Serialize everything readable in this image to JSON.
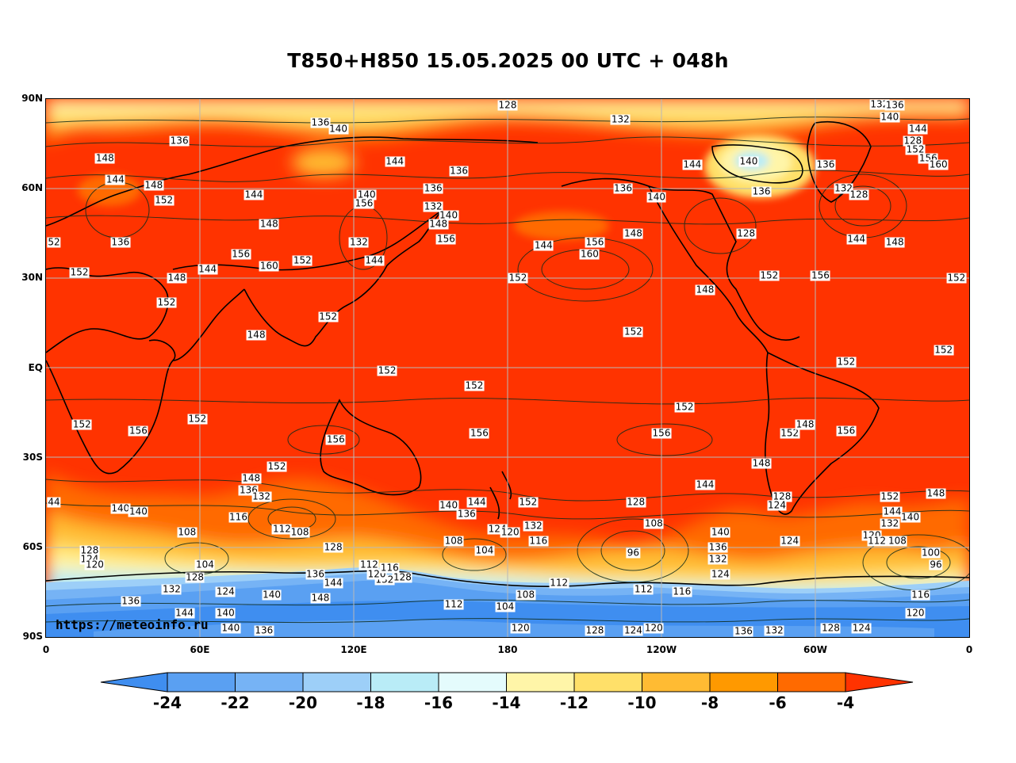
{
  "title": "T850+H850 15.05.2025 00 UTC + 048h",
  "credit": "https://meteoinfo.ru",
  "map": {
    "projection": "equirectangular",
    "lon_range": [
      0,
      360
    ],
    "lat_range": [
      -90,
      90
    ],
    "background_color": "#ff3300",
    "lat_ticks": [
      {
        "label": "90N",
        "lat": 90
      },
      {
        "label": "60N",
        "lat": 60
      },
      {
        "label": "30N",
        "lat": 30
      },
      {
        "label": "EQ",
        "lat": 0
      },
      {
        "label": "30S",
        "lat": -30
      },
      {
        "label": "60S",
        "lat": -60
      },
      {
        "label": "90S",
        "lat": -90
      }
    ],
    "lon_ticks": [
      {
        "label": "0",
        "lon": 0
      },
      {
        "label": "60E",
        "lon": 60
      },
      {
        "label": "120E",
        "lon": 120
      },
      {
        "label": "180",
        "lon": 180
      },
      {
        "label": "120W",
        "lon": 240
      },
      {
        "label": "60W",
        "lon": 300
      },
      {
        "label": "0",
        "lon": 360
      }
    ],
    "gridlines": true
  },
  "colorbar": {
    "levels": [
      "-24",
      "-22",
      "-20",
      "-18",
      "-16",
      "-14",
      "-12",
      "-10",
      "-8",
      "-6",
      "-4"
    ],
    "colors": [
      "#3f8ef0",
      "#5aa0f2",
      "#76b3f5",
      "#9dcff8",
      "#b9ecf7",
      "#e4fbfc",
      "#fff5a8",
      "#ffe069",
      "#ffbb33",
      "#ff9900",
      "#ff6a00",
      "#ff3300"
    ],
    "extend": "both"
  },
  "contour_labels": [
    {
      "t": "128",
      "lon": 180,
      "lat": 88
    },
    {
      "t": "132",
      "lon": 224,
      "lat": 83
    },
    {
      "t": "136",
      "lon": 107,
      "lat": 82
    },
    {
      "t": "140",
      "lon": 114,
      "lat": 80
    },
    {
      "t": "136",
      "lon": 52,
      "lat": 76
    },
    {
      "t": "148",
      "lon": 23,
      "lat": 70
    },
    {
      "t": "144",
      "lon": 27,
      "lat": 63
    },
    {
      "t": "148",
      "lon": 42,
      "lat": 61
    },
    {
      "t": "152",
      "lon": 46,
      "lat": 56
    },
    {
      "t": "144",
      "lon": 81,
      "lat": 58
    },
    {
      "t": "148",
      "lon": 87,
      "lat": 48
    },
    {
      "t": "136",
      "lon": 29,
      "lat": 42
    },
    {
      "t": "52",
      "lon": 1,
      "lat": 42
    },
    {
      "t": "152",
      "lon": 13,
      "lat": 32
    },
    {
      "t": "156",
      "lon": 76,
      "lat": 38
    },
    {
      "t": "160",
      "lon": 87,
      "lat": 34
    },
    {
      "t": "152",
      "lon": 100,
      "lat": 36
    },
    {
      "t": "148",
      "lon": 51,
      "lat": 30
    },
    {
      "t": "144",
      "lon": 63,
      "lat": 33
    },
    {
      "t": "152",
      "lon": 47,
      "lat": 22
    },
    {
      "t": "152",
      "lon": 110,
      "lat": 17
    },
    {
      "t": "148",
      "lon": 82,
      "lat": 11
    },
    {
      "t": "144",
      "lon": 136,
      "lat": 69
    },
    {
      "t": "136",
      "lon": 161,
      "lat": 66
    },
    {
      "t": "136",
      "lon": 151,
      "lat": 60
    },
    {
      "t": "132",
      "lon": 151,
      "lat": 54
    },
    {
      "t": "140",
      "lon": 125,
      "lat": 58
    },
    {
      "t": "156",
      "lon": 124,
      "lat": 55
    },
    {
      "t": "140",
      "lon": 157,
      "lat": 51
    },
    {
      "t": "148",
      "lon": 153,
      "lat": 48
    },
    {
      "t": "156",
      "lon": 156,
      "lat": 43
    },
    {
      "t": "132",
      "lon": 122,
      "lat": 42
    },
    {
      "t": "144",
      "lon": 128,
      "lat": 36
    },
    {
      "t": "144",
      "lon": 194,
      "lat": 41
    },
    {
      "t": "156",
      "lon": 214,
      "lat": 42
    },
    {
      "t": "160",
      "lon": 212,
      "lat": 38
    },
    {
      "t": "152",
      "lon": 184,
      "lat": 30
    },
    {
      "t": "136",
      "lon": 225,
      "lat": 60
    },
    {
      "t": "140",
      "lon": 238,
      "lat": 57
    },
    {
      "t": "148",
      "lon": 229,
      "lat": 45
    },
    {
      "t": "144",
      "lon": 252,
      "lat": 68
    },
    {
      "t": "140",
      "lon": 274,
      "lat": 69
    },
    {
      "t": "136",
      "lon": 279,
      "lat": 59
    },
    {
      "t": "128",
      "lon": 273,
      "lat": 45
    },
    {
      "t": "152",
      "lon": 282,
      "lat": 31
    },
    {
      "t": "156",
      "lon": 302,
      "lat": 31
    },
    {
      "t": "148",
      "lon": 257,
      "lat": 26
    },
    {
      "t": "152",
      "lon": 229,
      "lat": 12
    },
    {
      "t": "132",
      "lon": 325,
      "lat": 90
    },
    {
      "t": "136",
      "lon": 331,
      "lat": 88
    },
    {
      "t": "140",
      "lon": 329,
      "lat": 84
    },
    {
      "t": "144",
      "lon": 340,
      "lat": 80
    },
    {
      "t": "128",
      "lon": 338,
      "lat": 76
    },
    {
      "t": "152",
      "lon": 339,
      "lat": 73
    },
    {
      "t": "156",
      "lon": 344,
      "lat": 70
    },
    {
      "t": "160",
      "lon": 348,
      "lat": 68
    },
    {
      "t": "136",
      "lon": 304,
      "lat": 68
    },
    {
      "t": "132",
      "lon": 311,
      "lat": 60
    },
    {
      "t": "128",
      "lon": 317,
      "lat": 58
    },
    {
      "t": "144",
      "lon": 316,
      "lat": 43
    },
    {
      "t": "148",
      "lon": 331,
      "lat": 42
    },
    {
      "t": "152",
      "lon": 355,
      "lat": 30
    },
    {
      "t": "152",
      "lon": 350,
      "lat": 6
    },
    {
      "t": "152",
      "lon": 312,
      "lat": 2
    },
    {
      "t": "152",
      "lon": 133,
      "lat": -1
    },
    {
      "t": "152",
      "lon": 167,
      "lat": -6
    },
    {
      "t": "152",
      "lon": 14,
      "lat": -19
    },
    {
      "t": "152",
      "lon": 59,
      "lat": -17
    },
    {
      "t": "156",
      "lon": 36,
      "lat": -21
    },
    {
      "t": "156",
      "lon": 113,
      "lat": -24
    },
    {
      "t": "156",
      "lon": 169,
      "lat": -22
    },
    {
      "t": "152",
      "lon": 249,
      "lat": -13
    },
    {
      "t": "156",
      "lon": 240,
      "lat": -22
    },
    {
      "t": "152",
      "lon": 290,
      "lat": -22
    },
    {
      "t": "148",
      "lon": 296,
      "lat": -19
    },
    {
      "t": "156",
      "lon": 312,
      "lat": -21
    },
    {
      "t": "152",
      "lon": 90,
      "lat": -33
    },
    {
      "t": "148",
      "lon": 80,
      "lat": -37
    },
    {
      "t": "136",
      "lon": 79,
      "lat": -41
    },
    {
      "t": "132",
      "lon": 84,
      "lat": -43
    },
    {
      "t": "44",
      "lon": 1,
      "lat": -45
    },
    {
      "t": "140",
      "lon": 29,
      "lat": -47
    },
    {
      "t": "140",
      "lon": 36,
      "lat": -48
    },
    {
      "t": "116",
      "lon": 75,
      "lat": -50
    },
    {
      "t": "112",
      "lon": 92,
      "lat": -54
    },
    {
      "t": "108",
      "lon": 99,
      "lat": -55
    },
    {
      "t": "108",
      "lon": 55,
      "lat": -55
    },
    {
      "t": "128",
      "lon": 17,
      "lat": -61
    },
    {
      "t": "124",
      "lon": 17,
      "lat": -64
    },
    {
      "t": "120",
      "lon": 19,
      "lat": -66
    },
    {
      "t": "104",
      "lon": 62,
      "lat": -66
    },
    {
      "t": "128",
      "lon": 58,
      "lat": -70
    },
    {
      "t": "128",
      "lon": 112,
      "lat": -60
    },
    {
      "t": "140",
      "lon": 157,
      "lat": -46
    },
    {
      "t": "144",
      "lon": 168,
      "lat": -45
    },
    {
      "t": "136",
      "lon": 164,
      "lat": -49
    },
    {
      "t": "152",
      "lon": 188,
      "lat": -45
    },
    {
      "t": "124",
      "lon": 176,
      "lat": -54
    },
    {
      "t": "132",
      "lon": 190,
      "lat": -53
    },
    {
      "t": "120",
      "lon": 181,
      "lat": -55
    },
    {
      "t": "108",
      "lon": 159,
      "lat": -58
    },
    {
      "t": "104",
      "lon": 171,
      "lat": -61
    },
    {
      "t": "116",
      "lon": 192,
      "lat": -58
    },
    {
      "t": "128",
      "lon": 230,
      "lat": -45
    },
    {
      "t": "108",
      "lon": 237,
      "lat": -52
    },
    {
      "t": "96",
      "lon": 229,
      "lat": -62
    },
    {
      "t": "140",
      "lon": 263,
      "lat": -55
    },
    {
      "t": "136",
      "lon": 262,
      "lat": -60
    },
    {
      "t": "132",
      "lon": 262,
      "lat": -64
    },
    {
      "t": "124",
      "lon": 263,
      "lat": -69
    },
    {
      "t": "144",
      "lon": 257,
      "lat": -39
    },
    {
      "t": "148",
      "lon": 279,
      "lat": -32
    },
    {
      "t": "128",
      "lon": 287,
      "lat": -43
    },
    {
      "t": "124",
      "lon": 285,
      "lat": -46
    },
    {
      "t": "124",
      "lon": 290,
      "lat": -58
    },
    {
      "t": "152",
      "lon": 329,
      "lat": -43
    },
    {
      "t": "148",
      "lon": 347,
      "lat": -42
    },
    {
      "t": "144",
      "lon": 330,
      "lat": -48
    },
    {
      "t": "140",
      "lon": 337,
      "lat": -50
    },
    {
      "t": "132",
      "lon": 329,
      "lat": -52
    },
    {
      "t": "120",
      "lon": 322,
      "lat": -56
    },
    {
      "t": "112",
      "lon": 324,
      "lat": -58
    },
    {
      "t": "108",
      "lon": 332,
      "lat": -58
    },
    {
      "t": "100",
      "lon": 345,
      "lat": -62
    },
    {
      "t": "96",
      "lon": 347,
      "lat": -66
    },
    {
      "t": "116",
      "lon": 341,
      "lat": -76
    },
    {
      "t": "120",
      "lon": 339,
      "lat": -82
    },
    {
      "t": "124",
      "lon": 318,
      "lat": -87
    },
    {
      "t": "128",
      "lon": 306,
      "lat": -87
    },
    {
      "t": "132",
      "lon": 284,
      "lat": -88
    },
    {
      "t": "136",
      "lon": 272,
      "lat": -89
    },
    {
      "t": "120",
      "lon": 237,
      "lat": -87
    },
    {
      "t": "124",
      "lon": 229,
      "lat": -88
    },
    {
      "t": "128",
      "lon": 214,
      "lat": -88
    },
    {
      "t": "112",
      "lon": 233,
      "lat": -74
    },
    {
      "t": "116",
      "lon": 248,
      "lat": -75
    },
    {
      "t": "112",
      "lon": 200,
      "lat": -72
    },
    {
      "t": "108",
      "lon": 187,
      "lat": -76
    },
    {
      "t": "104",
      "lon": 179,
      "lat": -80
    },
    {
      "t": "120",
      "lon": 185,
      "lat": -87
    },
    {
      "t": "112",
      "lon": 159,
      "lat": -79
    },
    {
      "t": "128",
      "lon": 139,
      "lat": -70
    },
    {
      "t": "132",
      "lon": 132,
      "lat": -71
    },
    {
      "t": "120",
      "lon": 129,
      "lat": -69
    },
    {
      "t": "112",
      "lon": 126,
      "lat": -66
    },
    {
      "t": "116",
      "lon": 134,
      "lat": -67
    },
    {
      "t": "136",
      "lon": 105,
      "lat": -69
    },
    {
      "t": "144",
      "lon": 112,
      "lat": -72
    },
    {
      "t": "148",
      "lon": 107,
      "lat": -77
    },
    {
      "t": "140",
      "lon": 88,
      "lat": -76
    },
    {
      "t": "124",
      "lon": 70,
      "lat": -75
    },
    {
      "t": "132",
      "lon": 49,
      "lat": -74
    },
    {
      "t": "136",
      "lon": 33,
      "lat": -78
    },
    {
      "t": "144",
      "lon": 54,
      "lat": -82
    },
    {
      "t": "140",
      "lon": 70,
      "lat": -82
    },
    {
      "t": "140",
      "lon": 72,
      "lat": -87
    },
    {
      "t": "136",
      "lon": 85,
      "lat": -88
    }
  ]
}
